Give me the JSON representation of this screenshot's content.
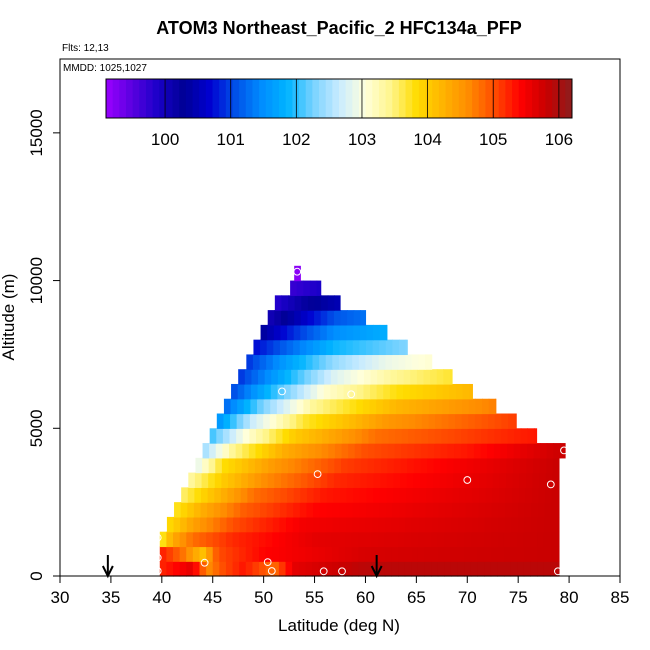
{
  "chart_data": {
    "type": "heatmap",
    "title": "ATOM3 Northeast_Pacific_2 HFC134a_PFP",
    "flights_label": "Flts: 12,13",
    "mmdd_label": "MMDD: 1025,1027",
    "xlabel": "Latitude (deg N)",
    "ylabel": "Altitude (m)",
    "xlim": [
      30,
      85
    ],
    "ylim": [
      0,
      17500
    ],
    "x_ticks": [
      "30",
      "35",
      "40",
      "45",
      "50",
      "55",
      "60",
      "65",
      "70",
      "75",
      "80",
      "85"
    ],
    "y_ticks": [
      "0",
      "5000",
      "10000",
      "15000"
    ],
    "colorbar": {
      "min": 99.1,
      "max": 106.2,
      "ticks": [
        "100",
        "101",
        "102",
        "103",
        "104",
        "105",
        "106"
      ]
    },
    "grid": false,
    "rows": [
      {
        "alt_lo": 0,
        "alt_hi": 500,
        "lat_lo": 39.8,
        "lat_hi": 79,
        "stops": [
          [
            39.8,
            105.2
          ],
          [
            43,
            105.6
          ],
          [
            44.5,
            104.6
          ],
          [
            46,
            105.0
          ],
          [
            48,
            105.3
          ],
          [
            51,
            104.8
          ],
          [
            53,
            105.6
          ],
          [
            60,
            105.9
          ],
          [
            79,
            105.9
          ]
        ]
      },
      {
        "alt_lo": 500,
        "alt_hi": 1000,
        "lat_lo": 39.8,
        "lat_hi": 79,
        "stops": [
          [
            39.8,
            105.3
          ],
          [
            42,
            104.8
          ],
          [
            44,
            104.1
          ],
          [
            45.5,
            105.0
          ],
          [
            50,
            105.4
          ],
          [
            60,
            105.7
          ],
          [
            79,
            105.8
          ]
        ]
      },
      {
        "alt_lo": 1000,
        "alt_hi": 1500,
        "lat_lo": 39.8,
        "lat_hi": 79,
        "stops": [
          [
            39.8,
            103.6
          ],
          [
            41,
            104.3
          ],
          [
            43,
            104.8
          ],
          [
            47,
            105.2
          ],
          [
            55,
            105.6
          ],
          [
            79,
            105.8
          ]
        ]
      },
      {
        "alt_lo": 1500,
        "alt_hi": 2000,
        "lat_lo": 40.5,
        "lat_hi": 79,
        "stops": [
          [
            40.5,
            103.8
          ],
          [
            43,
            104.4
          ],
          [
            47,
            105.0
          ],
          [
            54,
            105.5
          ],
          [
            79,
            105.8
          ]
        ]
      },
      {
        "alt_lo": 2000,
        "alt_hi": 2500,
        "lat_lo": 41.2,
        "lat_hi": 79,
        "stops": [
          [
            41.2,
            103.7
          ],
          [
            44,
            104.3
          ],
          [
            48,
            104.9
          ],
          [
            55,
            105.4
          ],
          [
            79,
            105.8
          ]
        ]
      },
      {
        "alt_lo": 2500,
        "alt_hi": 3000,
        "lat_lo": 41.9,
        "lat_hi": 79,
        "stops": [
          [
            41.9,
            103.5
          ],
          [
            45,
            104.1
          ],
          [
            49,
            104.8
          ],
          [
            56,
            105.3
          ],
          [
            79,
            105.8
          ]
        ]
      },
      {
        "alt_lo": 3000,
        "alt_hi": 3500,
        "lat_lo": 42.6,
        "lat_hi": 79,
        "stops": [
          [
            42.6,
            103.3
          ],
          [
            46,
            104.0
          ],
          [
            50,
            104.6
          ],
          [
            57,
            105.2
          ],
          [
            79,
            105.8
          ]
        ]
      },
      {
        "alt_lo": 3500,
        "alt_hi": 4000,
        "lat_lo": 43.3,
        "lat_hi": 79,
        "stops": [
          [
            43.3,
            102.8
          ],
          [
            46,
            103.8
          ],
          [
            51,
            104.5
          ],
          [
            58,
            105.1
          ],
          [
            79,
            105.8
          ]
        ]
      },
      {
        "alt_lo": 4000,
        "alt_hi": 4500,
        "lat_lo": 44.0,
        "lat_hi": 79.6,
        "stops": [
          [
            44,
            102.4
          ],
          [
            47,
            103.4
          ],
          [
            52,
            104.3
          ],
          [
            60,
            105.0
          ],
          [
            70,
            105.3
          ],
          [
            79.6,
            105.8
          ]
        ]
      },
      {
        "alt_lo": 4500,
        "alt_hi": 5000,
        "lat_lo": 44.7,
        "lat_hi": 76.8,
        "stops": [
          [
            44.7,
            102.0
          ],
          [
            48,
            103.0
          ],
          [
            53,
            104.0
          ],
          [
            61,
            104.8
          ],
          [
            76.8,
            105.3
          ]
        ]
      },
      {
        "alt_lo": 5000,
        "alt_hi": 5500,
        "lat_lo": 45.4,
        "lat_hi": 74.8,
        "stops": [
          [
            45.4,
            101.5
          ],
          [
            49,
            102.7
          ],
          [
            54,
            103.7
          ],
          [
            62,
            104.5
          ],
          [
            74.8,
            105.1
          ]
        ]
      },
      {
        "alt_lo": 5500,
        "alt_hi": 6000,
        "lat_lo": 46.1,
        "lat_hi": 72.8,
        "stops": [
          [
            46.1,
            101.2
          ],
          [
            50,
            102.3
          ],
          [
            55,
            103.4
          ],
          [
            63,
            104.2
          ],
          [
            72.8,
            104.7
          ]
        ]
      },
      {
        "alt_lo": 6000,
        "alt_hi": 6500,
        "lat_lo": 46.8,
        "lat_hi": 70.5,
        "stops": [
          [
            46.8,
            101.0
          ],
          [
            51,
            102.0
          ],
          [
            56,
            103.1
          ],
          [
            63,
            103.8
          ],
          [
            70.5,
            104.2
          ]
        ]
      },
      {
        "alt_lo": 6500,
        "alt_hi": 7000,
        "lat_lo": 47.5,
        "lat_hi": 68.5,
        "stops": [
          [
            47.5,
            100.9
          ],
          [
            52,
            101.8
          ],
          [
            57,
            102.8
          ],
          [
            63,
            103.4
          ],
          [
            68.5,
            103.7
          ]
        ]
      },
      {
        "alt_lo": 7000,
        "alt_hi": 7500,
        "lat_lo": 48.3,
        "lat_hi": 66.5,
        "stops": [
          [
            48.3,
            100.9
          ],
          [
            52,
            101.6
          ],
          [
            57,
            102.4
          ],
          [
            62,
            102.9
          ],
          [
            66.5,
            103.1
          ]
        ]
      },
      {
        "alt_lo": 7500,
        "alt_hi": 8000,
        "lat_lo": 49.0,
        "lat_hi": 64.1,
        "stops": [
          [
            49,
            100.7
          ],
          [
            53,
            101.3
          ],
          [
            57,
            101.9
          ],
          [
            64.1,
            102.3
          ]
        ]
      },
      {
        "alt_lo": 8000,
        "alt_hi": 8500,
        "lat_lo": 49.7,
        "lat_hi": 62.1,
        "stops": [
          [
            49.7,
            100.3
          ],
          [
            53,
            100.9
          ],
          [
            57,
            101.5
          ],
          [
            62.1,
            101.8
          ]
        ]
      },
      {
        "alt_lo": 8500,
        "alt_hi": 9000,
        "lat_lo": 50.4,
        "lat_hi": 60.0,
        "stops": [
          [
            50.4,
            100.0
          ],
          [
            54,
            100.6
          ],
          [
            57,
            101.1
          ],
          [
            60,
            101.3
          ]
        ]
      },
      {
        "alt_lo": 9000,
        "alt_hi": 9500,
        "lat_lo": 51.1,
        "lat_hi": 57.5,
        "stops": [
          [
            51.1,
            99.8
          ],
          [
            54,
            100.2
          ],
          [
            57.5,
            100.5
          ]
        ]
      },
      {
        "alt_lo": 9500,
        "alt_hi": 10000,
        "lat_lo": 52.6,
        "lat_hi": 55.6,
        "stops": [
          [
            52.6,
            99.7
          ],
          [
            55.6,
            99.9
          ]
        ]
      },
      {
        "alt_lo": 10000,
        "alt_hi": 10500,
        "lat_lo": 53.0,
        "lat_hi": 53.6,
        "stops": [
          [
            53.0,
            99.2
          ],
          [
            53.6,
            99.2
          ]
        ]
      }
    ],
    "samples": [
      {
        "lat": 39.6,
        "alt": 1300
      },
      {
        "lat": 39.6,
        "alt": 620
      },
      {
        "lat": 39.6,
        "alt": 170
      },
      {
        "lat": 44.2,
        "alt": 450
      },
      {
        "lat": 50.4,
        "alt": 470
      },
      {
        "lat": 50.8,
        "alt": 170
      },
      {
        "lat": 53.3,
        "alt": 10300
      },
      {
        "lat": 51.8,
        "alt": 6250
      },
      {
        "lat": 58.6,
        "alt": 6150
      },
      {
        "lat": 55.3,
        "alt": 3450
      },
      {
        "lat": 55.9,
        "alt": 160
      },
      {
        "lat": 57.7,
        "alt": 160
      },
      {
        "lat": 70.0,
        "alt": 3250
      },
      {
        "lat": 78.2,
        "alt": 3100
      },
      {
        "lat": 79.5,
        "alt": 4250
      },
      {
        "lat": 78.9,
        "alt": 160
      }
    ],
    "arrows": [
      34.7,
      61.1
    ]
  },
  "colors": {
    "scale": [
      "#9a00ff",
      "#5a00e0",
      "#1a00c8",
      "#000096",
      "#0000d0",
      "#0050e8",
      "#008cff",
      "#00b4ff",
      "#78d2ff",
      "#c8ebff",
      "#ffffdc",
      "#fff58c",
      "#ffdc00",
      "#ffb400",
      "#ff8c00",
      "#ff4b00",
      "#ff0000",
      "#c80000",
      "#8c1e1e"
    ]
  }
}
